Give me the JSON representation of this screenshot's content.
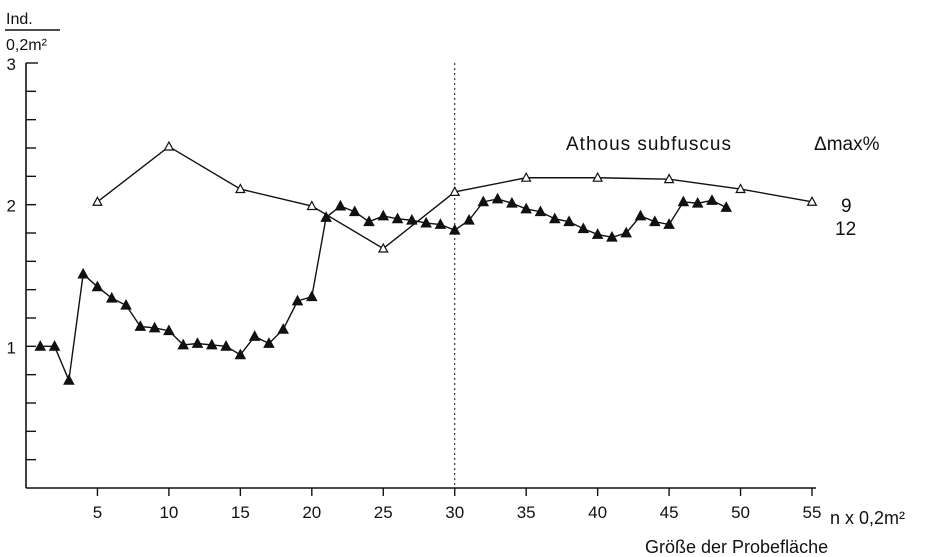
{
  "chart_data": {
    "type": "line",
    "title": "",
    "ylabel_numerator": "Ind.",
    "ylabel_denominator": "0,2m²",
    "xlabel_unit": "n x 0,2m²",
    "xlabel": "Größe der Probefläche",
    "xlim": [
      0,
      55
    ],
    "ylim": [
      0,
      3
    ],
    "x_ticks": [
      5,
      10,
      15,
      20,
      25,
      30,
      35,
      40,
      45,
      50,
      55
    ],
    "x_tick_labels": [
      "5",
      "10",
      "15",
      "20",
      "25",
      "30",
      "35",
      "40",
      "45",
      "50",
      "55"
    ],
    "y_ticks": [
      1,
      2,
      3
    ],
    "y_tick_labels": [
      "1",
      "2",
      "3"
    ],
    "y_minor_step": 0.2,
    "reference_line_x": 30,
    "species_label": "Athous subfuscus",
    "delta_header": "Δmax%",
    "series": [
      {
        "marker": "open-triangle",
        "delta_label": "9",
        "x": [
          5,
          10,
          15,
          20,
          25,
          30,
          35,
          40,
          45,
          50,
          55
        ],
        "y": [
          2.02,
          2.41,
          2.11,
          1.99,
          1.69,
          2.09,
          2.19,
          2.19,
          2.18,
          2.11,
          2.02
        ]
      },
      {
        "marker": "filled-triangle",
        "delta_label": "12",
        "x": [
          1,
          2,
          3,
          4,
          5,
          6,
          7,
          8,
          9,
          10,
          11,
          12,
          13,
          14,
          15,
          16,
          17,
          18,
          19,
          20,
          21,
          22,
          23,
          24,
          25,
          26,
          27,
          28,
          29,
          30,
          31,
          32,
          33,
          34,
          35,
          36,
          37,
          38,
          39,
          40,
          41,
          42,
          43,
          44,
          45,
          46,
          47,
          48,
          49
        ],
        "y": [
          1.0,
          1.0,
          0.76,
          1.51,
          1.42,
          1.34,
          1.29,
          1.14,
          1.13,
          1.11,
          1.01,
          1.02,
          1.01,
          1.0,
          0.94,
          1.07,
          1.02,
          1.12,
          1.32,
          1.35,
          1.91,
          1.99,
          1.95,
          1.88,
          1.92,
          1.9,
          1.89,
          1.87,
          1.86,
          1.82,
          1.89,
          2.02,
          2.04,
          2.01,
          1.97,
          1.95,
          1.9,
          1.88,
          1.83,
          1.79,
          1.77,
          1.8,
          1.92,
          1.88,
          1.86,
          2.02,
          2.01,
          2.03,
          1.98
        ]
      }
    ]
  }
}
